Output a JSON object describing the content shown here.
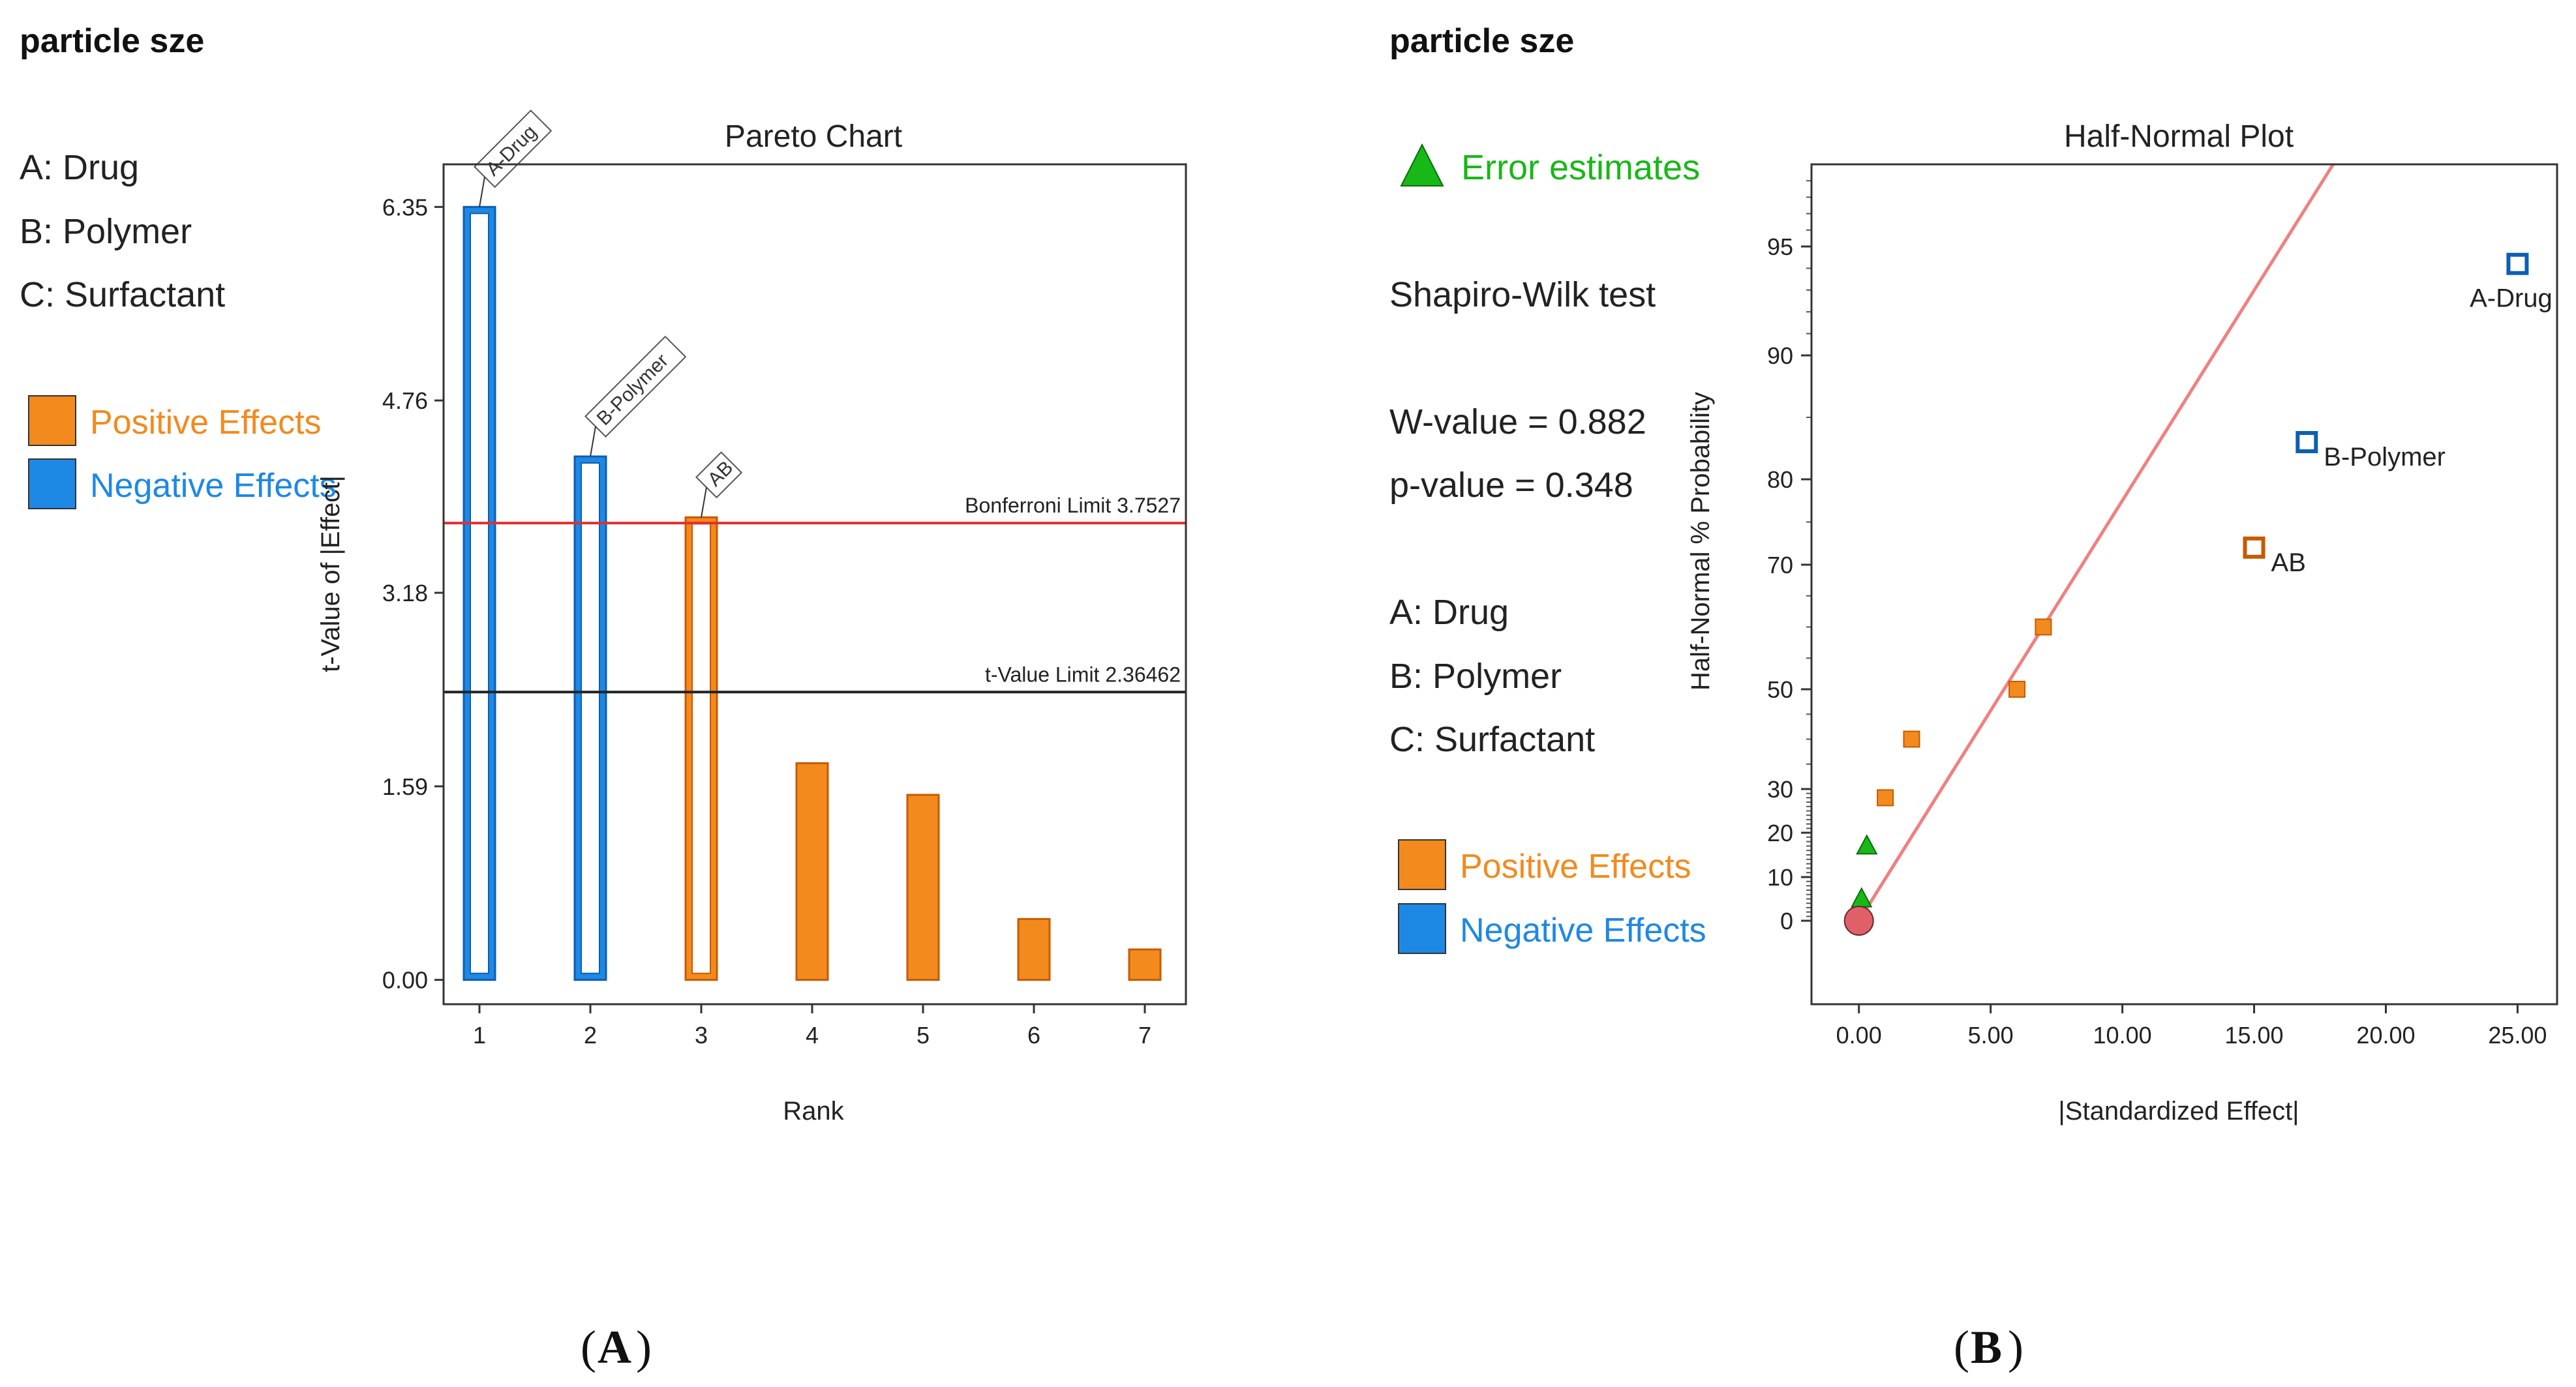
{
  "panel_a": {
    "heading": "particle sze",
    "factors": [
      "A: Drug",
      "B: Polymer",
      "C: Surfactant"
    ],
    "legend": [
      {
        "label": "Positive Effects",
        "color": "#f28a1e"
      },
      {
        "label": "Negative Effects",
        "color": "#1e88e5"
      }
    ],
    "panel_label_open": "(",
    "panel_label_letter": "A",
    "panel_label_close": ")"
  },
  "panel_b": {
    "heading": "particle sze",
    "error_legend": {
      "label": "Error estimates",
      "color": "#18b818"
    },
    "stats": [
      "Shapiro-Wilk test",
      "W-value = 0.882",
      "p-value = 0.348"
    ],
    "factors": [
      "A: Drug",
      "B: Polymer",
      "C: Surfactant"
    ],
    "legend": [
      {
        "label": "Positive Effects",
        "color": "#f28a1e"
      },
      {
        "label": "Negative Effects",
        "color": "#1e88e5"
      }
    ],
    "panel_label_open": "(",
    "panel_label_letter": "B",
    "panel_label_close": ")"
  },
  "colors": {
    "positive": "#f28a1e",
    "positive_edge": "#c85a00",
    "negative": "#1e88e5",
    "negative_edge": "#0d5fb0",
    "error": "#18b818",
    "bonferroni_line": "#e03030",
    "tlimit_line": "#222222",
    "fit_line": "#f08080",
    "origin_point": "#e0606a"
  },
  "chart_data": [
    {
      "type": "bar",
      "title": "Pareto Chart",
      "xlabel": "Rank",
      "ylabel": "t-Value of |Effect|",
      "categories": [
        "1",
        "2",
        "3",
        "4",
        "5",
        "6",
        "7"
      ],
      "values": [
        6.35,
        4.3,
        3.8,
        1.78,
        1.52,
        0.5,
        0.25
      ],
      "effect_sign": [
        "negative",
        "negative",
        "positive",
        "positive",
        "positive",
        "positive",
        "positive"
      ],
      "bar_labels": [
        "A-Drug",
        "B-Polymer",
        "AB",
        "",
        "",
        "",
        ""
      ],
      "yticks": [
        "0.00",
        "1.59",
        "3.18",
        "4.76",
        "6.35"
      ],
      "ytick_values": [
        0,
        1.59,
        3.18,
        4.76,
        6.35
      ],
      "ylim": [
        -0.2,
        6.7
      ],
      "reference_lines": [
        {
          "label": "Bonferroni Limit 3.7527",
          "value": 3.7527,
          "color": "#e03030"
        },
        {
          "label": "t-Value Limit 2.36462",
          "value": 2.36462,
          "color": "#222222"
        }
      ]
    },
    {
      "type": "scatter",
      "title": "Half-Normal Plot",
      "xlabel": "|Standardized Effect|",
      "ylabel": "Half-Normal % Probability",
      "xlim": [
        -1.8,
        26.5
      ],
      "xticks": [
        "0.00",
        "5.00",
        "10.00",
        "15.00",
        "20.00",
        "25.00"
      ],
      "xtick_values": [
        0,
        5,
        10,
        15,
        20,
        25
      ],
      "yticks": [
        "0",
        "10",
        "20",
        "30",
        "50",
        "70",
        "80",
        "90",
        "95"
      ],
      "ytick_values": [
        0,
        10,
        20,
        30,
        50,
        70,
        80,
        90,
        95
      ],
      "points": [
        {
          "x": 25.0,
          "y": 94.2,
          "kind": "negative",
          "label": "A-Drug"
        },
        {
          "x": 17.0,
          "y": 83.0,
          "kind": "negative",
          "label": "B-Polymer"
        },
        {
          "x": 15.0,
          "y": 72.0,
          "kind": "positive",
          "label": "AB"
        },
        {
          "x": 7.0,
          "y": 60.0,
          "kind": "positive",
          "label": ""
        },
        {
          "x": 6.0,
          "y": 50.0,
          "kind": "positive",
          "label": ""
        },
        {
          "x": 2.0,
          "y": 40.0,
          "kind": "positive",
          "label": ""
        },
        {
          "x": 1.0,
          "y": 28.0,
          "kind": "positive",
          "label": ""
        },
        {
          "x": 0.3,
          "y": 17.0,
          "kind": "error",
          "label": ""
        },
        {
          "x": 0.1,
          "y": 5.0,
          "kind": "error",
          "label": ""
        },
        {
          "x": 0.0,
          "y": 0.0,
          "kind": "origin",
          "label": ""
        }
      ],
      "fit_line": {
        "x0": 0.0,
        "y0": 0.0,
        "x1": 18.0,
        "y1": 100
      }
    }
  ]
}
